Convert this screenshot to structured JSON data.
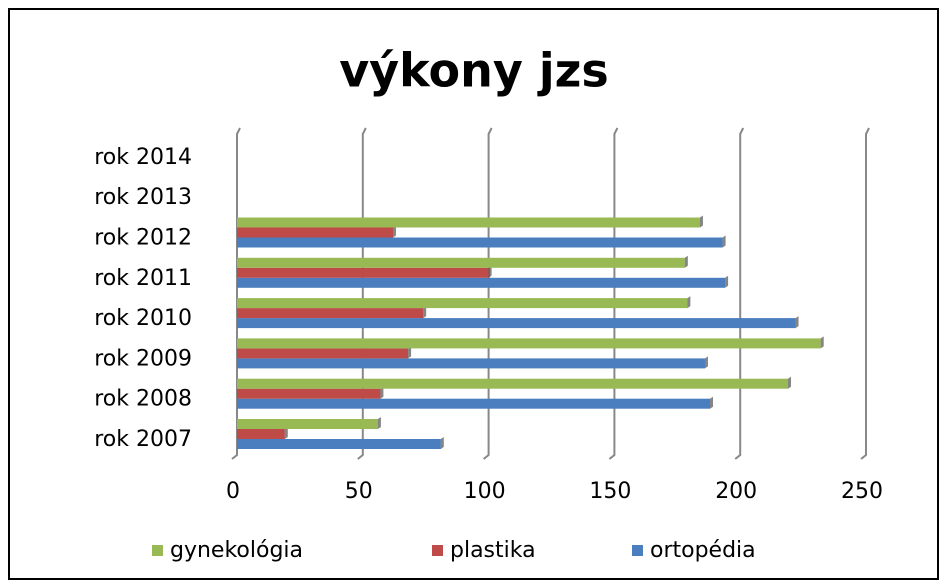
{
  "chart_data": {
    "type": "bar",
    "orientation": "horizontal",
    "title": "výkony jzs",
    "categories": [
      "rok 2007",
      "rok 2008",
      "rok 2009",
      "rok 2010",
      "rok 2011",
      "rok 2012",
      "rok 2013",
      "rok 2014"
    ],
    "series": [
      {
        "name": "ortopédia",
        "color": "#4a7ebf",
        "values": [
          81,
          188,
          186,
          222,
          194,
          193,
          null,
          null
        ]
      },
      {
        "name": "plastika",
        "color": "#be4b48",
        "values": [
          19,
          57,
          68,
          74,
          100,
          62,
          null,
          null
        ]
      },
      {
        "name": "gynekológia",
        "color": "#98b954",
        "values": [
          56,
          219,
          232,
          179,
          178,
          184,
          null,
          null
        ]
      }
    ],
    "xlim": [
      0,
      250
    ],
    "xticks": [
      0,
      50,
      100,
      150,
      200,
      250
    ],
    "grid": true,
    "legend": "bottom"
  }
}
